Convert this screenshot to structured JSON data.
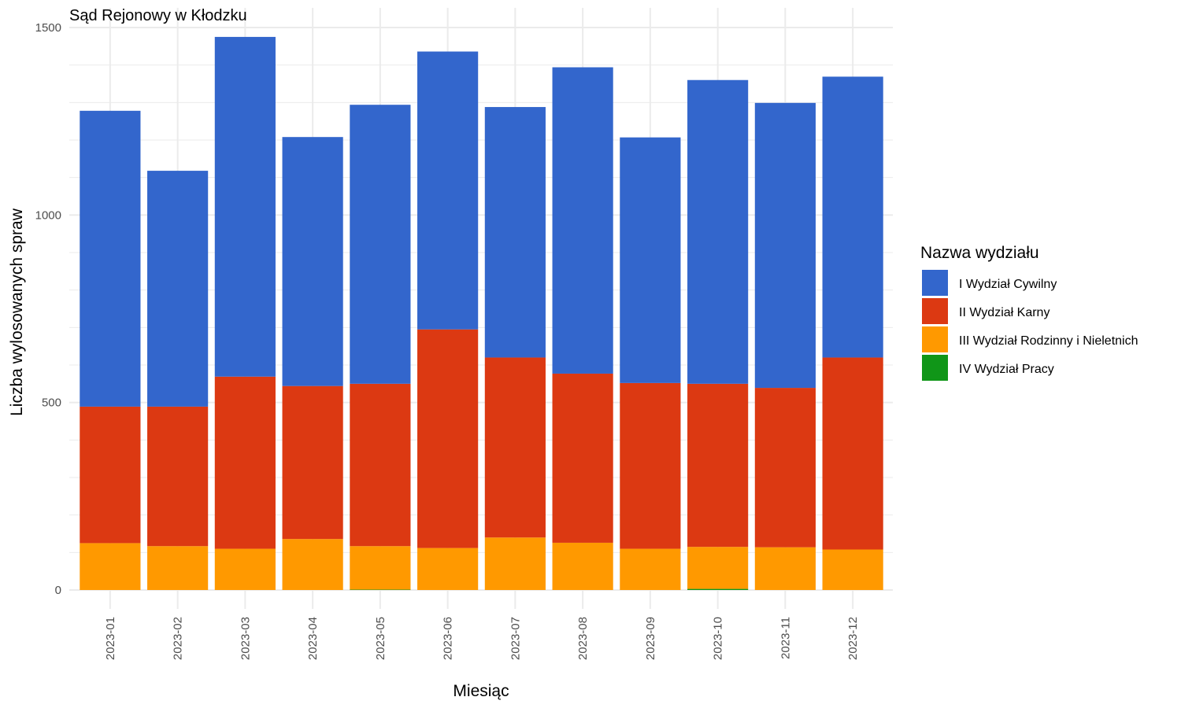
{
  "chart_data": {
    "type": "bar",
    "stacked": true,
    "title": "Sąd Rejonowy w Kłodzku",
    "xlabel": "Miesiąc",
    "ylabel": "Liczba wylosowanych spraw",
    "ylim": [
      0,
      1500
    ],
    "yticks": [
      0,
      500,
      1000,
      1500
    ],
    "grid": true,
    "legend_position": "right",
    "legend_title": "Nazwa wydziału",
    "categories": [
      "2023-01",
      "2023-02",
      "2023-03",
      "2023-04",
      "2023-05",
      "2023-06",
      "2023-07",
      "2023-08",
      "2023-09",
      "2023-10",
      "2023-11",
      "2023-12"
    ],
    "series": [
      {
        "name": "IV Wydział Pracy",
        "color": "#109618",
        "values": [
          0,
          0,
          0,
          0,
          1,
          0,
          0,
          0,
          0,
          3,
          0,
          0
        ]
      },
      {
        "name": "III Wydział Rodzinny i Nieletnich",
        "color": "#FF9900",
        "values": [
          125,
          117,
          110,
          136,
          116,
          112,
          140,
          126,
          110,
          112,
          114,
          108
        ]
      },
      {
        "name": "II Wydział Karny",
        "color": "#DC3912",
        "values": [
          364,
          372,
          459,
          408,
          433,
          583,
          480,
          451,
          442,
          435,
          425,
          512
        ]
      },
      {
        "name": "I Wydział Cywilny",
        "color": "#3366CC",
        "values": [
          789,
          629,
          906,
          664,
          744,
          741,
          668,
          817,
          655,
          810,
          760,
          749
        ]
      }
    ]
  }
}
